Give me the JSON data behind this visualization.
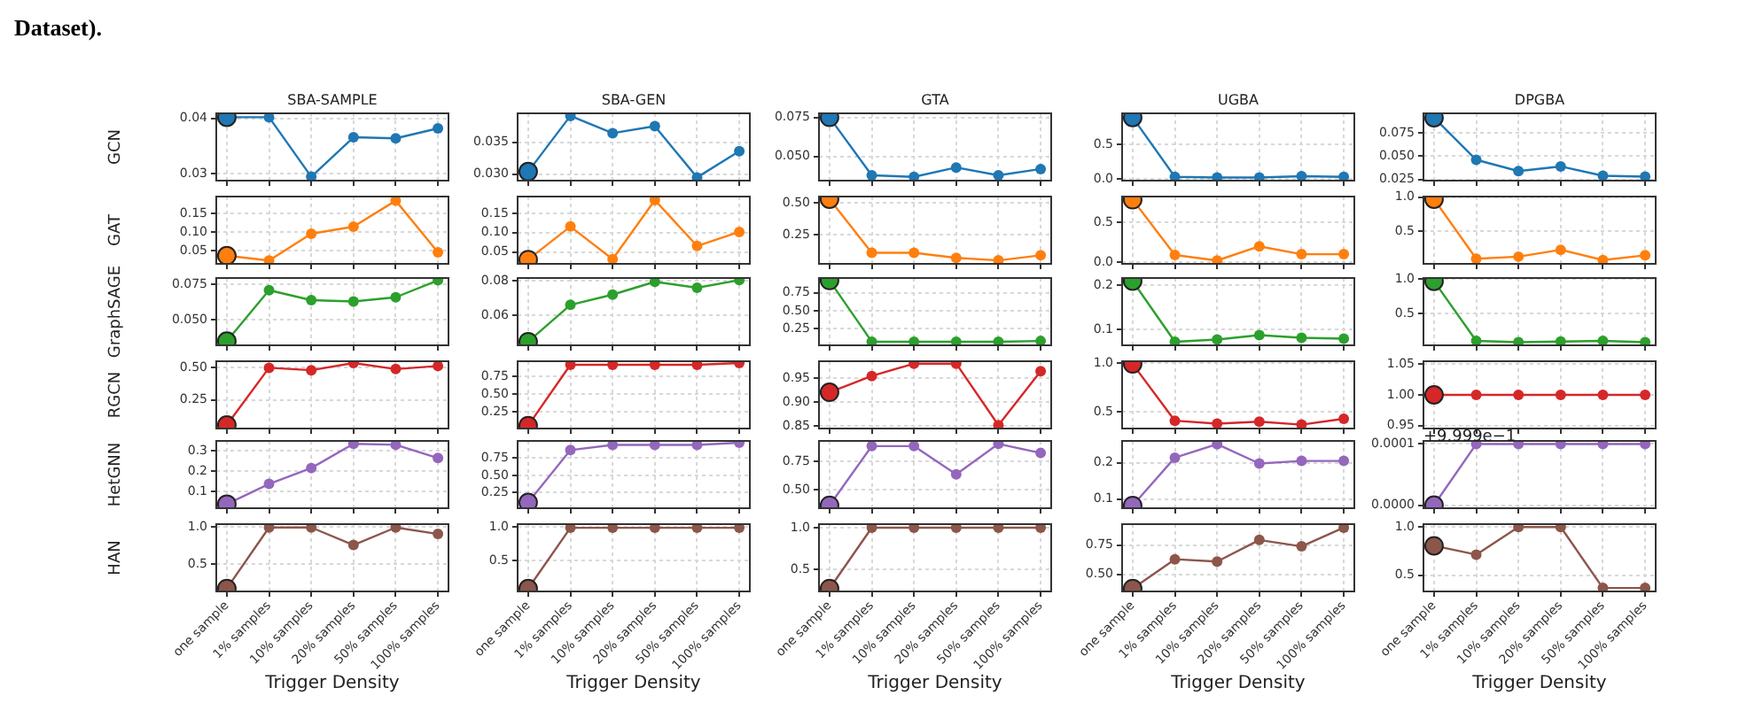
{
  "chart_data": [
    {
      "type": "line",
      "title": "SBA-SAMPLE",
      "ylabel": "GCN",
      "annotations": [
        "Dataset)."
      ],
      "categories": [
        null,
        null,
        null,
        null,
        null,
        null
      ],
      "series": [
        {
          "color": "#1f77b4",
          "values": [
            0.0402,
            0.0402,
            0.0295,
            0.0366,
            0.0364,
            0.0382
          ]
        }
      ],
      "ylim": [
        0.0288,
        0.0409
      ],
      "yticks": [
        0.03,
        0.04
      ],
      "grid": true,
      "marker": "circle"
    },
    {
      "type": "line",
      "title": "SBA-GEN",
      "categories": [
        null,
        null,
        null,
        null,
        null,
        null
      ],
      "series": [
        {
          "color": "#1f77b4",
          "values": [
            0.0304,
            0.0391,
            0.0364,
            0.0375,
            0.0295,
            0.0336
          ]
        }
      ],
      "ylim": [
        0.029,
        0.0395
      ],
      "yticks": [
        {
          "value": 0.03,
          "label": "0.030"
        },
        0.035
      ],
      "grid": true,
      "marker": "circle"
    },
    {
      "type": "line",
      "title": "GTA",
      "categories": [
        null,
        null,
        null,
        null,
        null,
        null
      ],
      "series": [
        {
          "color": "#1f77b4",
          "values": [
            0.075,
            0.038,
            0.037,
            0.043,
            0.038,
            0.042
          ]
        }
      ],
      "ylim": [
        0.0346,
        0.0776
      ],
      "yticks": [
        {
          "value": 0.05,
          "label": "0.050"
        },
        0.075
      ],
      "grid": true,
      "marker": "circle"
    },
    {
      "type": "line",
      "title": "UGBA",
      "categories": [
        null,
        null,
        null,
        null,
        null,
        null
      ],
      "series": [
        {
          "color": "#1f77b4",
          "values": [
            0.89,
            0.03,
            0.02,
            0.02,
            0.04,
            0.03
          ]
        }
      ],
      "ylim": [
        -0.025,
        0.95
      ],
      "yticks": [
        {
          "value": 0,
          "label": "0.0"
        },
        0.5
      ],
      "grid": true,
      "marker": "circle"
    },
    {
      "type": "line",
      "title": "DPGBA",
      "categories": [
        null,
        null,
        null,
        null,
        null,
        null
      ],
      "series": [
        {
          "color": "#1f77b4",
          "values": [
            0.091,
            0.046,
            0.034,
            0.039,
            0.029,
            0.028
          ]
        }
      ],
      "ylim": [
        0.0238,
        0.0957
      ],
      "yticks": [
        0.025,
        {
          "value": 0.05,
          "label": "0.050"
        },
        0.075
      ],
      "grid": true,
      "marker": "circle"
    },
    {
      "type": "line",
      "ylabel": "GAT",
      "categories": [
        null,
        null,
        null,
        null,
        null,
        null
      ],
      "series": [
        {
          "color": "#ff7f0e",
          "values": [
            0.036,
            0.023,
            0.095,
            0.114,
            0.184,
            0.045
          ]
        }
      ],
      "ylim": [
        0.014,
        0.195
      ],
      "yticks": [
        0.05,
        {
          "value": 0.1,
          "label": "0.10"
        },
        0.15
      ],
      "grid": true,
      "marker": "circle"
    },
    {
      "type": "line",
      "categories": [
        null,
        null,
        null,
        null,
        null,
        null
      ],
      "series": [
        {
          "color": "#ff7f0e",
          "values": [
            0.031,
            0.116,
            0.032,
            0.184,
            0.066,
            0.102
          ]
        }
      ],
      "ylim": [
        0.02,
        0.193
      ],
      "yticks": [
        0.05,
        {
          "value": 0.1,
          "label": "0.10"
        },
        0.15
      ],
      "grid": true,
      "marker": "circle"
    },
    {
      "type": "line",
      "categories": [
        null,
        null,
        null,
        null,
        null,
        null
      ],
      "series": [
        {
          "color": "#ff7f0e",
          "values": [
            0.53,
            0.11,
            0.11,
            0.07,
            0.05,
            0.09
          ]
        }
      ],
      "ylim": [
        0.023,
        0.55
      ],
      "yticks": [
        0.25,
        {
          "value": 0.5,
          "label": "0.50"
        }
      ],
      "grid": true,
      "marker": "circle"
    },
    {
      "type": "line",
      "categories": [
        null,
        null,
        null,
        null,
        null,
        null
      ],
      "series": [
        {
          "color": "#ff7f0e",
          "values": [
            0.79,
            0.09,
            0.02,
            0.2,
            0.1,
            0.1
          ]
        }
      ],
      "ylim": [
        -0.022,
        0.83
      ],
      "yticks": [
        {
          "value": 0,
          "label": "0.0"
        },
        0.5
      ],
      "grid": true,
      "marker": "circle"
    },
    {
      "type": "line",
      "categories": [
        null,
        null,
        null,
        null,
        null,
        null
      ],
      "series": [
        {
          "color": "#ff7f0e",
          "values": [
            0.97,
            0.1,
            0.13,
            0.23,
            0.08,
            0.15
          ]
        }
      ],
      "ylim": [
        0.025,
        1.008
      ],
      "yticks": [
        0.5,
        {
          "value": 1,
          "label": "1.0"
        }
      ],
      "grid": true,
      "marker": "circle"
    },
    {
      "type": "line",
      "ylabel": "GraphSAGE",
      "categories": [
        null,
        null,
        null,
        null,
        null,
        null
      ],
      "series": [
        {
          "color": "#2ca02c",
          "values": [
            0.035,
            0.071,
            0.064,
            0.063,
            0.066,
            0.078
          ]
        }
      ],
      "ylim": [
        0.0321,
        0.0796
      ],
      "yticks": [
        {
          "value": 0.05,
          "label": "0.050"
        },
        0.075
      ],
      "grid": true,
      "marker": "circle"
    },
    {
      "type": "line",
      "categories": [
        null,
        null,
        null,
        null,
        null,
        null
      ],
      "series": [
        {
          "color": "#2ca02c",
          "values": [
            0.0445,
            0.066,
            0.072,
            0.0795,
            0.076,
            0.0805
          ]
        }
      ],
      "ylim": [
        0.0424,
        0.0817
      ],
      "yticks": [
        0.06,
        0.08
      ],
      "grid": true,
      "marker": "circle"
    },
    {
      "type": "line",
      "categories": [
        null,
        null,
        null,
        null,
        null,
        null
      ],
      "series": [
        {
          "color": "#2ca02c",
          "values": [
            0.92,
            0.07,
            0.07,
            0.07,
            0.07,
            0.08
          ]
        }
      ],
      "ylim": [
        0.02,
        0.955
      ],
      "yticks": [
        0.25,
        {
          "value": 0.5,
          "label": "0.50"
        },
        0.75
      ],
      "grid": true,
      "marker": "circle"
    },
    {
      "type": "line",
      "categories": [
        null,
        null,
        null,
        null,
        null,
        null
      ],
      "series": [
        {
          "color": "#2ca02c",
          "values": [
            0.209,
            0.072,
            0.077,
            0.087,
            0.081,
            0.079
          ]
        }
      ],
      "ylim": [
        0.064,
        0.216
      ],
      "yticks": [
        0.1,
        0.2
      ],
      "grid": true,
      "marker": "circle"
    },
    {
      "type": "line",
      "categories": [
        null,
        null,
        null,
        null,
        null,
        null
      ],
      "series": [
        {
          "color": "#2ca02c",
          "values": [
            0.97,
            0.1,
            0.08,
            0.09,
            0.1,
            0.08
          ]
        }
      ],
      "ylim": [
        0.035,
        1.017
      ],
      "yticks": [
        0.5,
        {
          "value": 1,
          "label": "1.0"
        }
      ],
      "grid": true,
      "marker": "circle"
    },
    {
      "type": "line",
      "ylabel": "RGCN",
      "categories": [
        null,
        null,
        null,
        null,
        null,
        null
      ],
      "series": [
        {
          "color": "#d62728",
          "values": [
            0.055,
            0.5,
            0.481,
            0.537,
            0.49,
            0.514
          ]
        }
      ],
      "ylim": [
        0.028,
        0.551
      ],
      "yticks": [
        0.25,
        {
          "value": 0.5,
          "label": "0.50"
        }
      ],
      "grid": true,
      "marker": "circle"
    },
    {
      "type": "line",
      "categories": [
        null,
        null,
        null,
        null,
        null,
        null
      ],
      "series": [
        {
          "color": "#d62728",
          "values": [
            0.055,
            0.92,
            0.92,
            0.92,
            0.92,
            0.945
          ]
        }
      ],
      "ylim": [
        0.013,
        0.97
      ],
      "yticks": [
        0.25,
        {
          "value": 0.5,
          "label": "0.50"
        },
        0.75
      ],
      "grid": true,
      "marker": "circle"
    },
    {
      "type": "line",
      "categories": [
        null,
        null,
        null,
        null,
        null,
        null
      ],
      "series": [
        {
          "color": "#d62728",
          "values": [
            0.921,
            0.955,
            0.981,
            0.981,
            0.852,
            0.965
          ]
        }
      ],
      "ylim": [
        0.845,
        0.986
      ],
      "yticks": [
        0.85,
        {
          "value": 0.9,
          "label": "0.90"
        },
        0.95
      ],
      "grid": true,
      "marker": "circle"
    },
    {
      "type": "line",
      "categories": [
        null,
        null,
        null,
        null,
        null,
        null
      ],
      "series": [
        {
          "color": "#d62728",
          "values": [
            0.99,
            0.41,
            0.38,
            0.4,
            0.37,
            0.43
          ]
        }
      ],
      "ylim": [
        0.33,
        1.018
      ],
      "yticks": [
        0.5,
        {
          "value": 1,
          "label": "1.0"
        }
      ],
      "grid": true,
      "marker": "circle"
    },
    {
      "type": "line",
      "categories": [
        null,
        null,
        null,
        null,
        null,
        null
      ],
      "series": [
        {
          "color": "#d62728",
          "values": [
            1,
            1,
            1,
            1,
            1,
            1
          ]
        }
      ],
      "ylim": [
        0.945,
        1.055
      ],
      "yticks": [
        0.95,
        {
          "value": 1,
          "label": "1.00"
        },
        1.05
      ],
      "grid": true,
      "marker": "circle"
    },
    {
      "type": "line",
      "ylabel": "HetGNN",
      "categories": [
        null,
        null,
        null,
        null,
        null,
        null
      ],
      "series": [
        {
          "color": "#9467bd",
          "values": [
            0.038,
            0.137,
            0.215,
            0.334,
            0.329,
            0.264
          ]
        }
      ],
      "ylim": [
        0.018,
        0.348
      ],
      "yticks": [
        0.1,
        0.2,
        0.3
      ],
      "grid": true,
      "marker": "circle"
    },
    {
      "type": "line",
      "categories": [
        null,
        null,
        null,
        null,
        null,
        null
      ],
      "series": [
        {
          "color": "#9467bd",
          "values": [
            0.108,
            0.867,
            0.942,
            0.942,
            0.942,
            0.975
          ]
        }
      ],
      "ylim": [
        0.025,
        1.0
      ],
      "yticks": [
        0.25,
        {
          "value": 0.5,
          "label": "0.50"
        },
        0.75
      ],
      "grid": true,
      "marker": "circle"
    },
    {
      "type": "line",
      "categories": [
        null,
        null,
        null,
        null,
        null,
        null
      ],
      "series": [
        {
          "color": "#9467bd",
          "values": [
            0.363,
            0.888,
            0.888,
            0.638,
            0.908,
            0.827
          ]
        }
      ],
      "ylim": [
        0.337,
        0.934
      ],
      "yticks": [
        {
          "value": 0.5,
          "label": "0.50"
        },
        0.75
      ],
      "grid": true,
      "marker": "circle"
    },
    {
      "type": "line",
      "categories": [
        null,
        null,
        null,
        null,
        null,
        null
      ],
      "series": [
        {
          "color": "#9467bd",
          "values": [
            0.0825,
            0.214,
            0.251,
            0.198,
            0.205,
            0.205
          ]
        }
      ],
      "ylim": [
        0.075,
        0.26
      ],
      "yticks": [
        0.1,
        0.2
      ],
      "grid": true,
      "marker": "circle"
    },
    {
      "type": "line",
      "annotations": [
        "+9.999e−1"
      ],
      "categories": [
        null,
        null,
        null,
        null,
        null,
        null
      ],
      "series": [
        {
          "color": "#9467bd",
          "values": [
            0,
            0.0001,
            0.0001,
            0.0001,
            0.0001,
            0.0001
          ]
        }
      ],
      "ylim": [
        -5e-06,
        0.000105
      ],
      "yticks": [
        {
          "value": 0,
          "label": "0.0000"
        },
        0.0001
      ],
      "grid": true,
      "marker": "circle"
    },
    {
      "type": "line",
      "ylabel": "HAN",
      "xlabel": "Trigger Density",
      "categories": [
        "one sample",
        "1% samples",
        "10% samples",
        "20% samples",
        "50% samples",
        "100% samples"
      ],
      "series": [
        {
          "color": "#8c564b",
          "values": [
            0.167,
            0.995,
            0.995,
            0.757,
            0.995,
            0.907
          ]
        }
      ],
      "ylim": [
        0.127,
        1.04
      ],
      "yticks": [
        0.5,
        {
          "value": 1,
          "label": "1.0"
        }
      ],
      "grid": true,
      "marker": "circle"
    },
    {
      "type": "line",
      "xlabel": "Trigger Density",
      "categories": [
        "one sample",
        "1% samples",
        "10% samples",
        "20% samples",
        "50% samples",
        "100% samples"
      ],
      "series": [
        {
          "color": "#8c564b",
          "values": [
            0.083,
            0.99,
            0.99,
            0.99,
            0.99,
            0.99
          ]
        }
      ],
      "ylim": [
        0.04,
        1.044
      ],
      "yticks": [
        0.5,
        {
          "value": 1,
          "label": "1.0"
        }
      ],
      "grid": true,
      "marker": "circle"
    },
    {
      "type": "line",
      "xlabel": "Trigger Density",
      "categories": [
        "one sample",
        "1% samples",
        "10% samples",
        "20% samples",
        "50% samples",
        "100% samples"
      ],
      "series": [
        {
          "color": "#8c564b",
          "values": [
            0.268,
            1,
            1,
            1,
            1,
            1
          ]
        }
      ],
      "ylim": [
        0.233,
        1.042
      ],
      "yticks": [
        0.5,
        {
          "value": 1,
          "label": "1.0"
        }
      ],
      "grid": true,
      "marker": "circle"
    },
    {
      "type": "line",
      "xlabel": "Trigger Density",
      "categories": [
        "one sample",
        "1% samples",
        "10% samples",
        "20% samples",
        "50% samples",
        "100% samples"
      ],
      "series": [
        {
          "color": "#8c564b",
          "values": [
            0.38,
            0.63,
            0.61,
            0.795,
            0.74,
            0.9
          ]
        }
      ],
      "ylim": [
        0.355,
        0.93
      ],
      "yticks": [
        {
          "value": 0.5,
          "label": "0.50"
        },
        0.75
      ],
      "grid": true,
      "marker": "circle"
    },
    {
      "type": "line",
      "xlabel": "Trigger Density",
      "categories": [
        "one sample",
        "1% samples",
        "10% samples",
        "20% samples",
        "50% samples",
        "100% samples"
      ],
      "series": [
        {
          "color": "#8c564b",
          "values": [
            0.805,
            0.713,
            1,
            1,
            0.366,
            0.366
          ]
        }
      ],
      "ylim": [
        0.33,
        1.03
      ],
      "yticks": [
        0.5,
        {
          "value": 1,
          "label": "1.0"
        }
      ],
      "grid": true,
      "marker": "circle"
    }
  ]
}
